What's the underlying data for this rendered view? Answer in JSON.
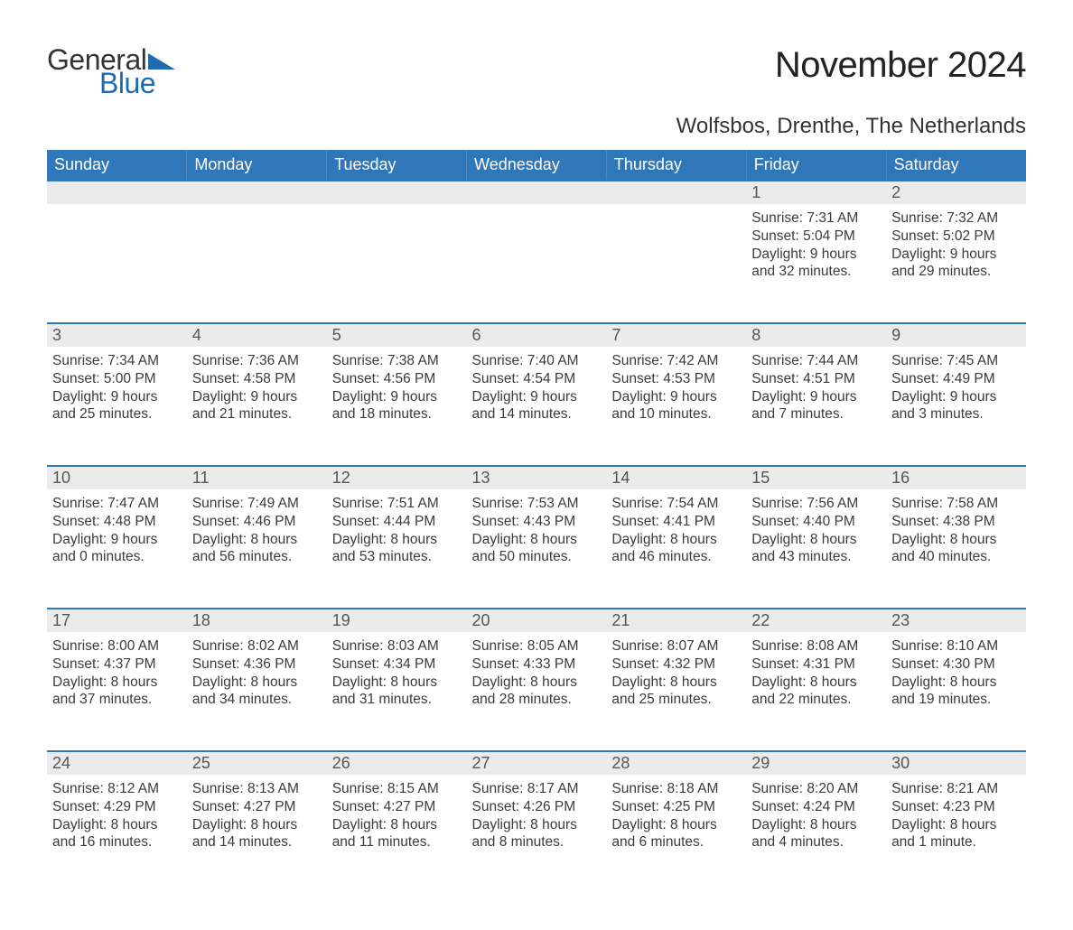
{
  "brand": {
    "word1": "General",
    "word2": "Blue",
    "color_text": "#333333",
    "color_blue": "#1f6bb0"
  },
  "title": "November 2024",
  "location": "Wolfsbos, Drenthe, The Netherlands",
  "calendar": {
    "type": "table",
    "columns": [
      "Sunday",
      "Monday",
      "Tuesday",
      "Wednesday",
      "Thursday",
      "Friday",
      "Saturday"
    ],
    "header_bg": "#2f77b8",
    "header_text_color": "#ffffff",
    "daynum_bg": "#ebebeb",
    "daynum_top_border": "#2f77b8",
    "body_text_color": "#3b3b3b",
    "font_family": "Arial",
    "header_fontsize_pt": 14,
    "daynum_fontsize_pt": 14,
    "body_fontsize_pt": 12,
    "weeks": [
      [
        null,
        null,
        null,
        null,
        null,
        {
          "day": 1,
          "sunrise": "7:31 AM",
          "sunset": "5:04 PM",
          "daylight": "9 hours and 32 minutes."
        },
        {
          "day": 2,
          "sunrise": "7:32 AM",
          "sunset": "5:02 PM",
          "daylight": "9 hours and 29 minutes."
        }
      ],
      [
        {
          "day": 3,
          "sunrise": "7:34 AM",
          "sunset": "5:00 PM",
          "daylight": "9 hours and 25 minutes."
        },
        {
          "day": 4,
          "sunrise": "7:36 AM",
          "sunset": "4:58 PM",
          "daylight": "9 hours and 21 minutes."
        },
        {
          "day": 5,
          "sunrise": "7:38 AM",
          "sunset": "4:56 PM",
          "daylight": "9 hours and 18 minutes."
        },
        {
          "day": 6,
          "sunrise": "7:40 AM",
          "sunset": "4:54 PM",
          "daylight": "9 hours and 14 minutes."
        },
        {
          "day": 7,
          "sunrise": "7:42 AM",
          "sunset": "4:53 PM",
          "daylight": "9 hours and 10 minutes."
        },
        {
          "day": 8,
          "sunrise": "7:44 AM",
          "sunset": "4:51 PM",
          "daylight": "9 hours and 7 minutes."
        },
        {
          "day": 9,
          "sunrise": "7:45 AM",
          "sunset": "4:49 PM",
          "daylight": "9 hours and 3 minutes."
        }
      ],
      [
        {
          "day": 10,
          "sunrise": "7:47 AM",
          "sunset": "4:48 PM",
          "daylight": "9 hours and 0 minutes."
        },
        {
          "day": 11,
          "sunrise": "7:49 AM",
          "sunset": "4:46 PM",
          "daylight": "8 hours and 56 minutes."
        },
        {
          "day": 12,
          "sunrise": "7:51 AM",
          "sunset": "4:44 PM",
          "daylight": "8 hours and 53 minutes."
        },
        {
          "day": 13,
          "sunrise": "7:53 AM",
          "sunset": "4:43 PM",
          "daylight": "8 hours and 50 minutes."
        },
        {
          "day": 14,
          "sunrise": "7:54 AM",
          "sunset": "4:41 PM",
          "daylight": "8 hours and 46 minutes."
        },
        {
          "day": 15,
          "sunrise": "7:56 AM",
          "sunset": "4:40 PM",
          "daylight": "8 hours and 43 minutes."
        },
        {
          "day": 16,
          "sunrise": "7:58 AM",
          "sunset": "4:38 PM",
          "daylight": "8 hours and 40 minutes."
        }
      ],
      [
        {
          "day": 17,
          "sunrise": "8:00 AM",
          "sunset": "4:37 PM",
          "daylight": "8 hours and 37 minutes."
        },
        {
          "day": 18,
          "sunrise": "8:02 AM",
          "sunset": "4:36 PM",
          "daylight": "8 hours and 34 minutes."
        },
        {
          "day": 19,
          "sunrise": "8:03 AM",
          "sunset": "4:34 PM",
          "daylight": "8 hours and 31 minutes."
        },
        {
          "day": 20,
          "sunrise": "8:05 AM",
          "sunset": "4:33 PM",
          "daylight": "8 hours and 28 minutes."
        },
        {
          "day": 21,
          "sunrise": "8:07 AM",
          "sunset": "4:32 PM",
          "daylight": "8 hours and 25 minutes."
        },
        {
          "day": 22,
          "sunrise": "8:08 AM",
          "sunset": "4:31 PM",
          "daylight": "8 hours and 22 minutes."
        },
        {
          "day": 23,
          "sunrise": "8:10 AM",
          "sunset": "4:30 PM",
          "daylight": "8 hours and 19 minutes."
        }
      ],
      [
        {
          "day": 24,
          "sunrise": "8:12 AM",
          "sunset": "4:29 PM",
          "daylight": "8 hours and 16 minutes."
        },
        {
          "day": 25,
          "sunrise": "8:13 AM",
          "sunset": "4:27 PM",
          "daylight": "8 hours and 14 minutes."
        },
        {
          "day": 26,
          "sunrise": "8:15 AM",
          "sunset": "4:27 PM",
          "daylight": "8 hours and 11 minutes."
        },
        {
          "day": 27,
          "sunrise": "8:17 AM",
          "sunset": "4:26 PM",
          "daylight": "8 hours and 8 minutes."
        },
        {
          "day": 28,
          "sunrise": "8:18 AM",
          "sunset": "4:25 PM",
          "daylight": "8 hours and 6 minutes."
        },
        {
          "day": 29,
          "sunrise": "8:20 AM",
          "sunset": "4:24 PM",
          "daylight": "8 hours and 4 minutes."
        },
        {
          "day": 30,
          "sunrise": "8:21 AM",
          "sunset": "4:23 PM",
          "daylight": "8 hours and 1 minute."
        }
      ]
    ]
  },
  "labels": {
    "sunrise": "Sunrise: ",
    "sunset": "Sunset: ",
    "daylight": "Daylight: "
  }
}
